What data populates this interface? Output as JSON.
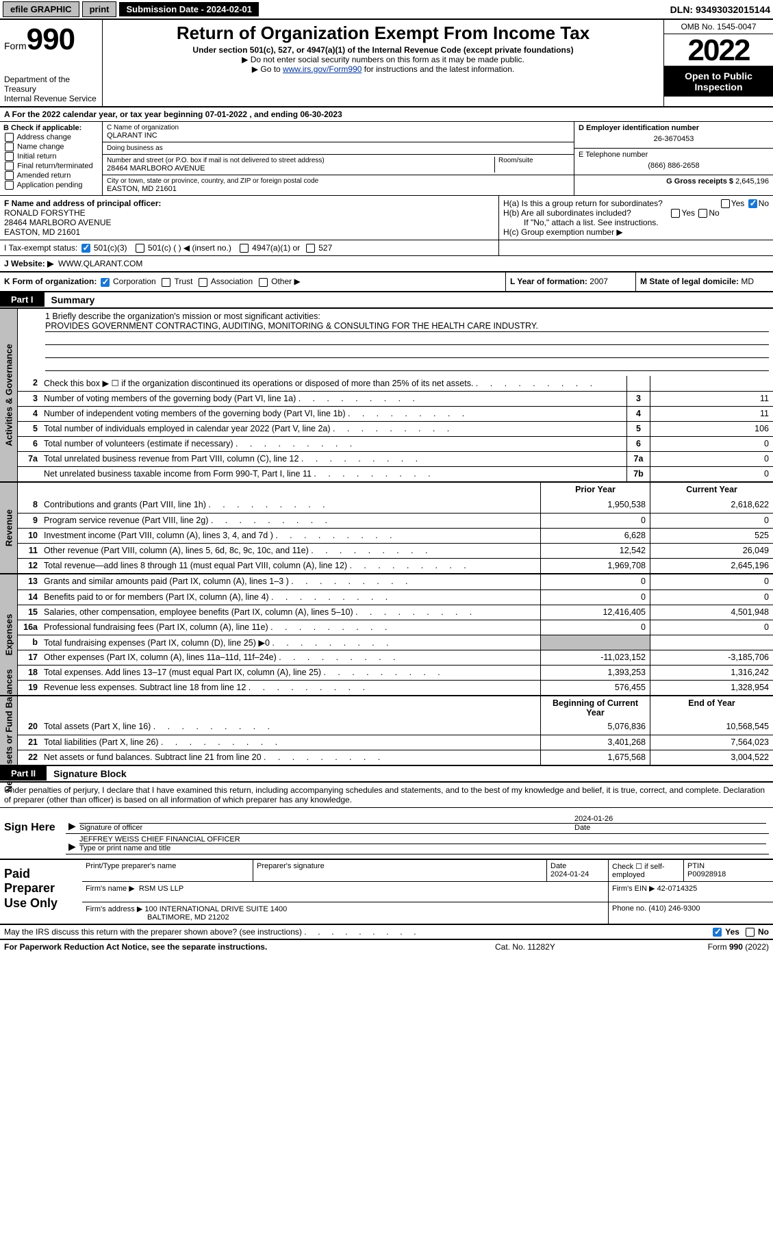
{
  "topbar": {
    "efile": "efile GRAPHIC",
    "print": "print",
    "sub_label": "Submission Date - 2024-02-01",
    "dln": "DLN: 93493032015144"
  },
  "header": {
    "form_word": "Form",
    "form_num": "990",
    "dept": "Department of the Treasury",
    "irs": "Internal Revenue Service",
    "title": "Return of Organization Exempt From Income Tax",
    "sub1": "Under section 501(c), 527, or 4947(a)(1) of the Internal Revenue Code (except private foundations)",
    "sub2": "▶ Do not enter social security numbers on this form as it may be made public.",
    "sub3_pre": "▶ Go to ",
    "sub3_link": "www.irs.gov/Form990",
    "sub3_post": " for instructions and the latest information.",
    "omb": "OMB No. 1545-0047",
    "year": "2022",
    "opi": "Open to Public Inspection"
  },
  "rowA": "A For the 2022 calendar year, or tax year beginning 07-01-2022   , and ending 06-30-2023",
  "boxB": {
    "hdr": "B Check if applicable:",
    "opts": [
      "Address change",
      "Name change",
      "Initial return",
      "Final return/terminated",
      "Amended return",
      "Application pending"
    ]
  },
  "boxC": {
    "name_lbl": "C Name of organization",
    "name": "QLARANT INC",
    "dba_lbl": "Doing business as",
    "dba": "",
    "street_lbl": "Number and street (or P.O. box if mail is not delivered to street address)",
    "room_lbl": "Room/suite",
    "street": "28464 MARLBORO AVENUE",
    "city_lbl": "City or town, state or province, country, and ZIP or foreign postal code",
    "city": "EASTON, MD  21601"
  },
  "boxD": {
    "ein_lbl": "D Employer identification number",
    "ein": "26-3670453",
    "tel_lbl": "E Telephone number",
    "tel": "(866) 886-2658",
    "gross_lbl": "G Gross receipts $",
    "gross": "2,645,196"
  },
  "boxF": {
    "lbl": "F Name and address of principal officer:",
    "name": "RONALD FORSYTHE",
    "addr1": "28464 MARLBORO AVENUE",
    "addr2": "EASTON, MD  21601"
  },
  "boxH": {
    "a": "H(a)  Is this a group return for subordinates?",
    "b": "H(b)  Are all subordinates included?",
    "note": "If \"No,\" attach a list. See instructions.",
    "c": "H(c)  Group exemption number ▶"
  },
  "rowI": {
    "lbl": "I    Tax-exempt status:",
    "o1": "501(c)(3)",
    "o2": "501(c) (   ) ◀ (insert no.)",
    "o3": "4947(a)(1) or",
    "o4": "527"
  },
  "rowJ": {
    "lbl": "J    Website: ▶",
    "val": "WWW.QLARANT.COM"
  },
  "rowK": {
    "lbl": "K Form of organization:",
    "o1": "Corporation",
    "o2": "Trust",
    "o3": "Association",
    "o4": "Other ▶"
  },
  "rowL": {
    "lbl": "L Year of formation:",
    "val": "2007"
  },
  "rowM": {
    "lbl": "M State of legal domicile:",
    "val": "MD"
  },
  "part1": {
    "tab": "Part I",
    "title": "Summary"
  },
  "mission": {
    "lbl": "1  Briefly describe the organization's mission or most significant activities:",
    "txt": "PROVIDES GOVERNMENT CONTRACTING, AUDITING, MONITORING & CONSULTING FOR THE HEALTH CARE INDUSTRY."
  },
  "gov_lines": [
    {
      "n": "2",
      "t": "Check this box ▶ ☐  if the organization discontinued its operations or disposed of more than 25% of its net assets.",
      "box": "",
      "v": ""
    },
    {
      "n": "3",
      "t": "Number of voting members of the governing body (Part VI, line 1a)",
      "box": "3",
      "v": "11"
    },
    {
      "n": "4",
      "t": "Number of independent voting members of the governing body (Part VI, line 1b)",
      "box": "4",
      "v": "11"
    },
    {
      "n": "5",
      "t": "Total number of individuals employed in calendar year 2022 (Part V, line 2a)",
      "box": "5",
      "v": "106"
    },
    {
      "n": "6",
      "t": "Total number of volunteers (estimate if necessary)",
      "box": "6",
      "v": "0"
    },
    {
      "n": "7a",
      "t": "Total unrelated business revenue from Part VIII, column (C), line 12",
      "box": "7a",
      "v": "0"
    },
    {
      "n": "",
      "t": "Net unrelated business taxable income from Form 990-T, Part I, line 11",
      "box": "7b",
      "v": "0"
    }
  ],
  "pycy_hdr": {
    "py": "Prior Year",
    "cy": "Current Year"
  },
  "rev_lines": [
    {
      "n": "8",
      "t": "Contributions and grants (Part VIII, line 1h)",
      "py": "1,950,538",
      "cy": "2,618,622"
    },
    {
      "n": "9",
      "t": "Program service revenue (Part VIII, line 2g)",
      "py": "0",
      "cy": "0"
    },
    {
      "n": "10",
      "t": "Investment income (Part VIII, column (A), lines 3, 4, and 7d )",
      "py": "6,628",
      "cy": "525"
    },
    {
      "n": "11",
      "t": "Other revenue (Part VIII, column (A), lines 5, 6d, 8c, 9c, 10c, and 11e)",
      "py": "12,542",
      "cy": "26,049"
    },
    {
      "n": "12",
      "t": "Total revenue—add lines 8 through 11 (must equal Part VIII, column (A), line 12)",
      "py": "1,969,708",
      "cy": "2,645,196"
    }
  ],
  "exp_lines": [
    {
      "n": "13",
      "t": "Grants and similar amounts paid (Part IX, column (A), lines 1–3 )",
      "py": "0",
      "cy": "0"
    },
    {
      "n": "14",
      "t": "Benefits paid to or for members (Part IX, column (A), line 4)",
      "py": "0",
      "cy": "0"
    },
    {
      "n": "15",
      "t": "Salaries, other compensation, employee benefits (Part IX, column (A), lines 5–10)",
      "py": "12,416,405",
      "cy": "4,501,948"
    },
    {
      "n": "16a",
      "t": "Professional fundraising fees (Part IX, column (A), line 11e)",
      "py": "0",
      "cy": "0"
    },
    {
      "n": "b",
      "t": "Total fundraising expenses (Part IX, column (D), line 25) ▶0",
      "py": "",
      "cy": "",
      "shade": true
    },
    {
      "n": "17",
      "t": "Other expenses (Part IX, column (A), lines 11a–11d, 11f–24e)",
      "py": "-11,023,152",
      "cy": "-3,185,706"
    },
    {
      "n": "18",
      "t": "Total expenses. Add lines 13–17 (must equal Part IX, column (A), line 25)",
      "py": "1,393,253",
      "cy": "1,316,242"
    },
    {
      "n": "19",
      "t": "Revenue less expenses. Subtract line 18 from line 12",
      "py": "576,455",
      "cy": "1,328,954"
    }
  ],
  "na_hdr": {
    "py": "Beginning of Current Year",
    "cy": "End of Year"
  },
  "na_lines": [
    {
      "n": "20",
      "t": "Total assets (Part X, line 16)",
      "py": "5,076,836",
      "cy": "10,568,545"
    },
    {
      "n": "21",
      "t": "Total liabilities (Part X, line 26)",
      "py": "3,401,268",
      "cy": "7,564,023"
    },
    {
      "n": "22",
      "t": "Net assets or fund balances. Subtract line 21 from line 20",
      "py": "1,675,568",
      "cy": "3,004,522"
    }
  ],
  "vlabels": {
    "gov": "Activities & Governance",
    "rev": "Revenue",
    "exp": "Expenses",
    "na": "Net Assets or Fund Balances"
  },
  "part2": {
    "tab": "Part II",
    "title": "Signature Block"
  },
  "sig": {
    "intro": "Under penalties of perjury, I declare that I have examined this return, including accompanying schedules and statements, and to the best of my knowledge and belief, it is true, correct, and complete. Declaration of preparer (other than officer) is based on all information of which preparer has any knowledge.",
    "here": "Sign Here",
    "sig_lbl": "Signature of officer",
    "date_lbl": "Date",
    "date": "2024-01-26",
    "name": "JEFFREY WEISS  CHIEF FINANCIAL OFFICER",
    "name_lbl": "Type or print name and title"
  },
  "prep": {
    "title": "Paid Preparer Use Only",
    "h1": "Print/Type preparer's name",
    "h2": "Preparer's signature",
    "h3": "Date",
    "date": "2024-01-24",
    "h4": "Check ☐ if self-employed",
    "h5": "PTIN",
    "ptin": "P00928918",
    "firm_lbl": "Firm's name    ▶",
    "firm": "RSM US LLP",
    "ein_lbl": "Firm's EIN ▶",
    "ein": "42-0714325",
    "addr_lbl": "Firm's address ▶",
    "addr1": "100 INTERNATIONAL DRIVE SUITE 1400",
    "addr2": "BALTIMORE, MD  21202",
    "phone_lbl": "Phone no.",
    "phone": "(410) 246-9300"
  },
  "footer": {
    "q": "May the IRS discuss this return with the preparer shown above? (see instructions)",
    "yes": "Yes",
    "no": "No",
    "pra": "For Paperwork Reduction Act Notice, see the separate instructions.",
    "cat": "Cat. No. 11282Y",
    "form": "Form 990 (2022)"
  }
}
